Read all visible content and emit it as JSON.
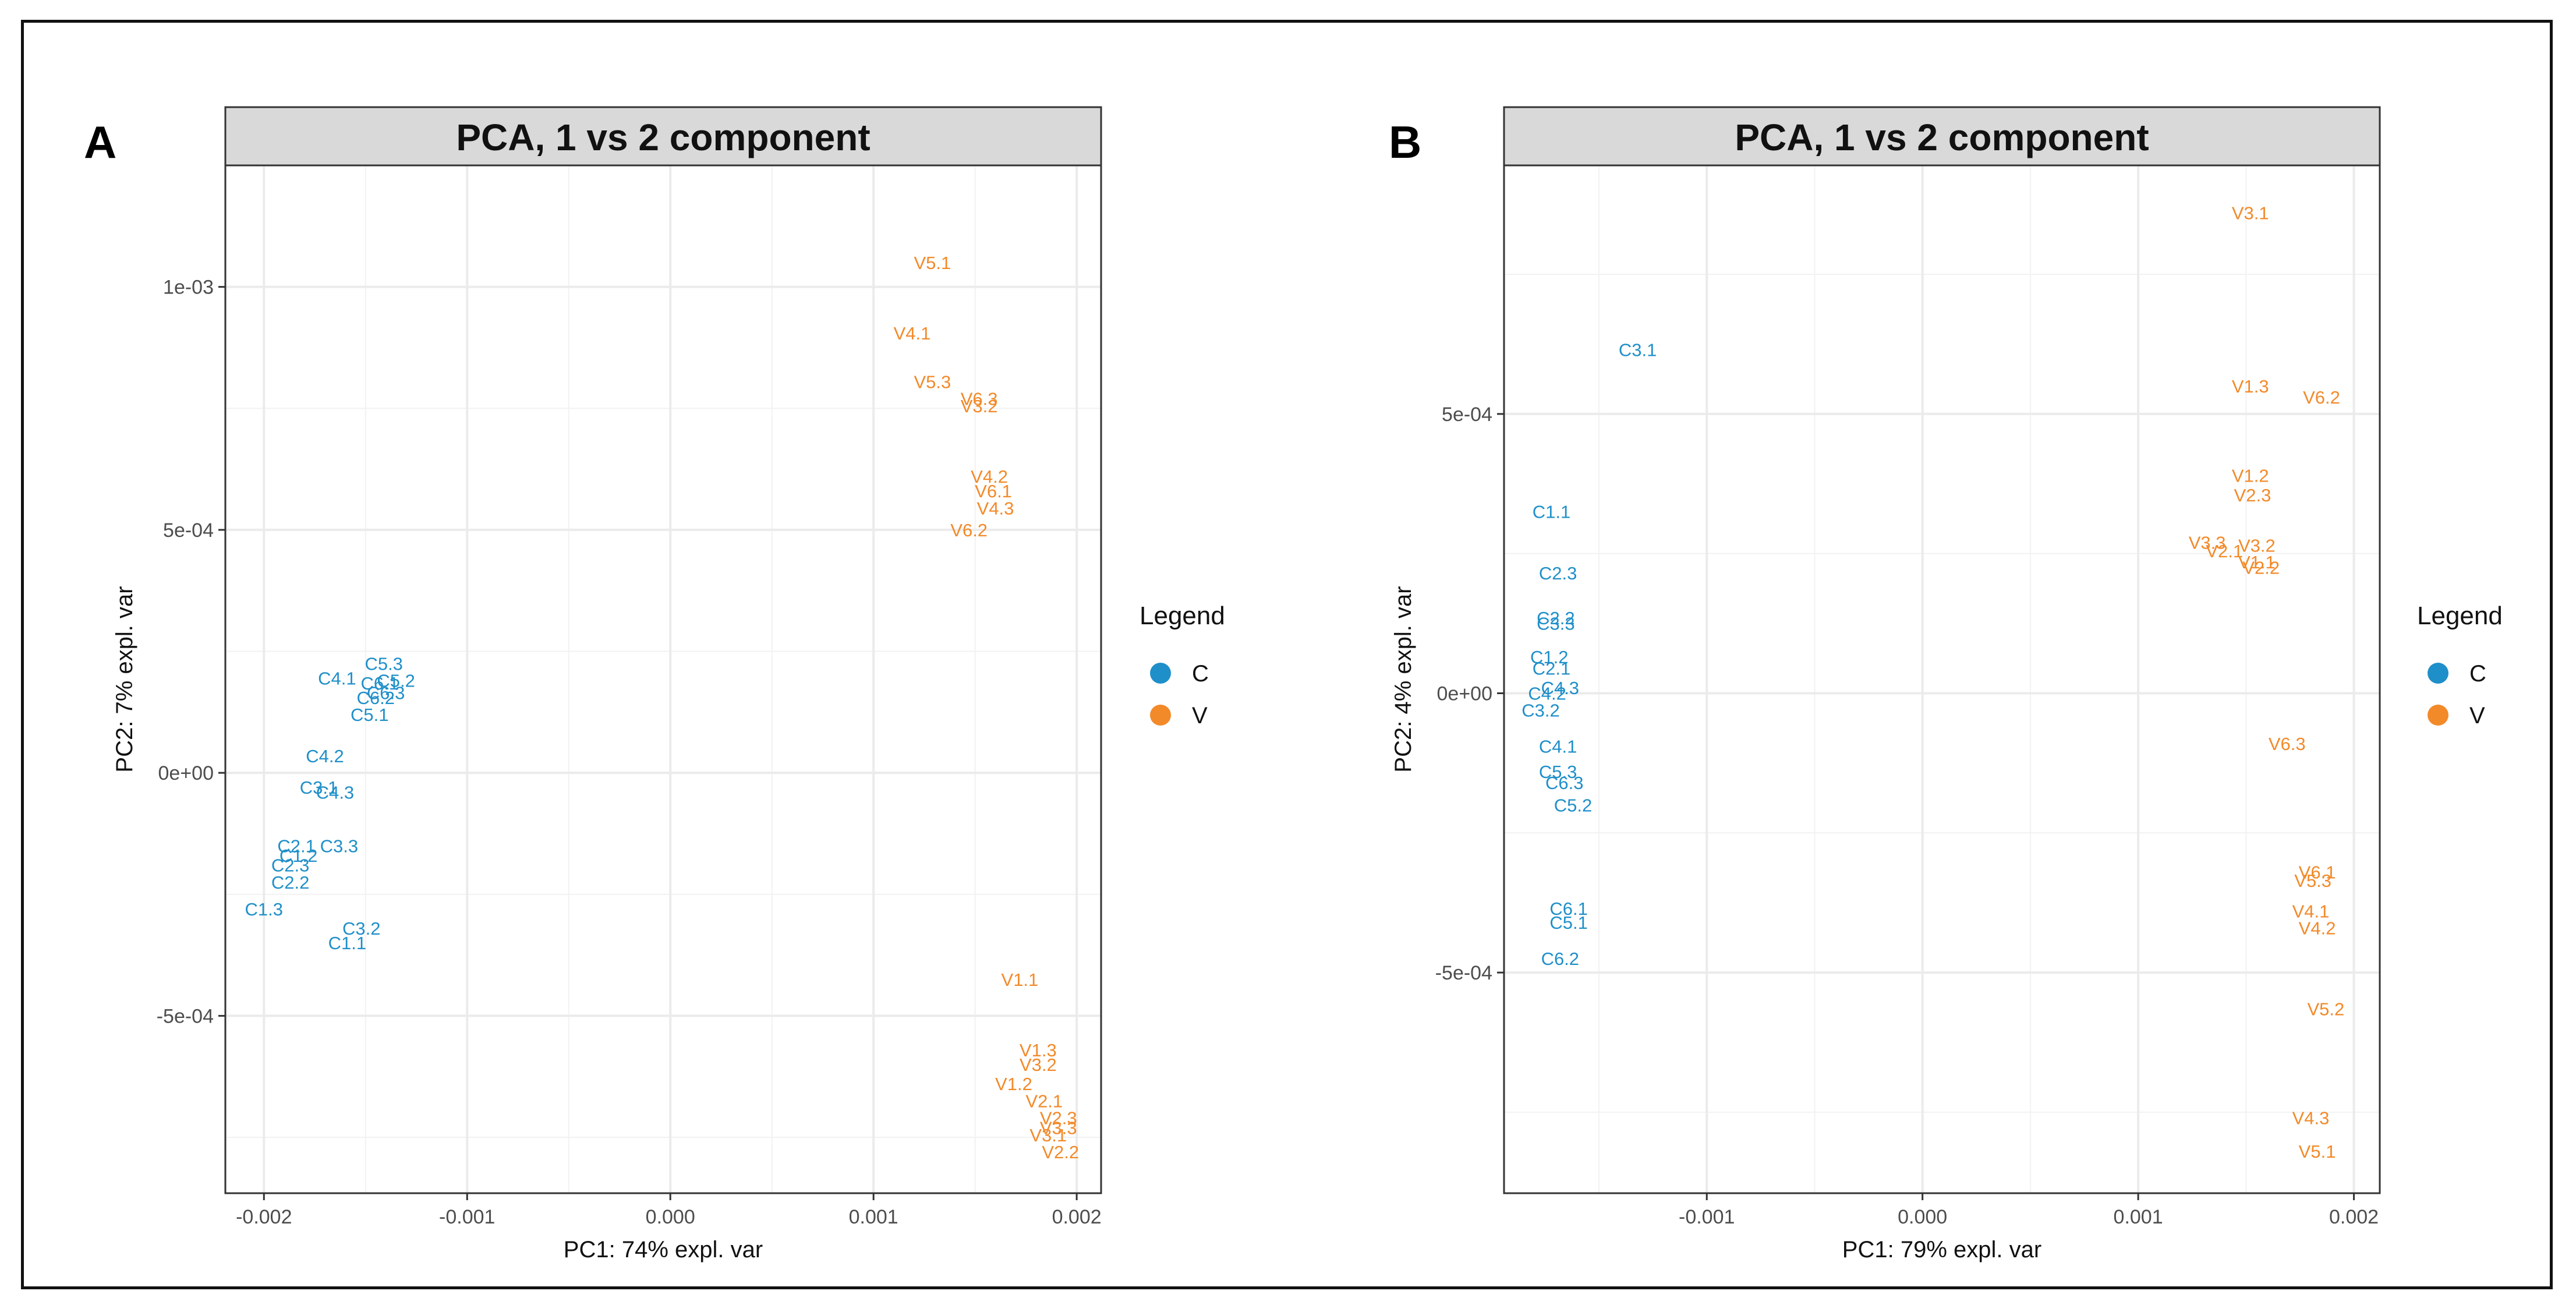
{
  "colors": {
    "C": "#1f8fc9",
    "V": "#f28a2a",
    "strip": "#d9d9d9",
    "grid": "#ebebeb",
    "panel_border": "#333333"
  },
  "legend_title": "Legend",
  "chart_data": [
    {
      "panel_label": "A",
      "type": "scatter",
      "title": "PCA, 1 vs 2 component",
      "xlabel": "PC1: 74% expl. var",
      "ylabel": "PC2: 7% expl. var",
      "xlim": [
        -0.00219,
        0.00212
      ],
      "ylim": [
        -0.000865,
        0.00125
      ],
      "x_ticks": [
        -0.002,
        -0.001,
        0.0,
        0.001,
        0.002
      ],
      "x_tick_labels": [
        "-0.002",
        "-0.001",
        "0.000",
        "0.001",
        "0.002"
      ],
      "y_ticks": [
        -0.0005,
        0.0,
        0.0005,
        0.001
      ],
      "y_tick_labels": [
        "-5e-04",
        "0e+00",
        "5e-04",
        "1e-03"
      ],
      "legend": {
        "title": "Legend",
        "entries": [
          "C",
          "V"
        ],
        "position": "right"
      },
      "series": [
        {
          "name": "C",
          "points": [
            {
              "label": "C5.3",
              "x": -0.00141,
              "y": 0.000225
            },
            {
              "label": "C4.1",
              "x": -0.00164,
              "y": 0.000195
            },
            {
              "label": "C6.1",
              "x": -0.00143,
              "y": 0.000185
            },
            {
              "label": "C5.2",
              "x": -0.00135,
              "y": 0.00019
            },
            {
              "label": "C6.3",
              "x": -0.0014,
              "y": 0.000165
            },
            {
              "label": "C6.2",
              "x": -0.00145,
              "y": 0.000155
            },
            {
              "label": "C5.1",
              "x": -0.00148,
              "y": 0.00012
            },
            {
              "label": "C4.2",
              "x": -0.0017,
              "y": 3.5e-05
            },
            {
              "label": "C3.1",
              "x": -0.00173,
              "y": -3e-05
            },
            {
              "label": "C4.3",
              "x": -0.00165,
              "y": -4e-05
            },
            {
              "label": "C2.1",
              "x": -0.00184,
              "y": -0.00015
            },
            {
              "label": "C3.3",
              "x": -0.00163,
              "y": -0.00015
            },
            {
              "label": "C1.2",
              "x": -0.00183,
              "y": -0.00017
            },
            {
              "label": "C2.3",
              "x": -0.00187,
              "y": -0.00019
            },
            {
              "label": "C2.2",
              "x": -0.00187,
              "y": -0.000225
            },
            {
              "label": "C1.3",
              "x": -0.002,
              "y": -0.00028
            },
            {
              "label": "C3.2",
              "x": -0.00152,
              "y": -0.00032
            },
            {
              "label": "C1.1",
              "x": -0.00159,
              "y": -0.00035
            }
          ]
        },
        {
          "name": "V",
          "points": [
            {
              "label": "V5.1",
              "x": 0.00129,
              "y": 0.00105
            },
            {
              "label": "V4.1",
              "x": 0.00119,
              "y": 0.000905
            },
            {
              "label": "V5.3",
              "x": 0.00129,
              "y": 0.000805
            },
            {
              "label": "V6.3",
              "x": 0.00152,
              "y": 0.00077
            },
            {
              "label": "V3.2",
              "x": 0.00152,
              "y": 0.000755
            },
            {
              "label": "V4.2",
              "x": 0.00157,
              "y": 0.00061
            },
            {
              "label": "V6.1",
              "x": 0.00159,
              "y": 0.00058
            },
            {
              "label": "V4.3",
              "x": 0.0016,
              "y": 0.000545
            },
            {
              "label": "V6.2",
              "x": 0.00147,
              "y": 0.0005
            },
            {
              "label": "V1.1",
              "x": 0.00172,
              "y": -0.000425
            },
            {
              "label": "V1.3",
              "x": 0.00181,
              "y": -0.00057
            },
            {
              "label": "V3.2",
              "x": 0.00181,
              "y": -0.0006
            },
            {
              "label": "V1.2",
              "x": 0.00169,
              "y": -0.00064
            },
            {
              "label": "V2.1",
              "x": 0.00184,
              "y": -0.000675
            },
            {
              "label": "V2.3",
              "x": 0.00191,
              "y": -0.00071
            },
            {
              "label": "V3.3",
              "x": 0.00191,
              "y": -0.00073
            },
            {
              "label": "V3.1",
              "x": 0.00186,
              "y": -0.000745
            },
            {
              "label": "V2.2",
              "x": 0.00192,
              "y": -0.00078
            }
          ]
        }
      ]
    },
    {
      "panel_label": "B",
      "type": "scatter",
      "title": "PCA, 1 vs 2 component",
      "xlabel": "PC1: 79% expl. var",
      "ylabel": "PC2: 4% expl. var",
      "xlim": [
        -0.00194,
        0.00212
      ],
      "ylim": [
        -0.000895,
        0.000945
      ],
      "x_ticks": [
        -0.001,
        0.0,
        0.001,
        0.002
      ],
      "x_tick_labels": [
        "-0.001",
        "0.000",
        "0.001",
        "0.002"
      ],
      "y_ticks": [
        -0.0005,
        0.0,
        0.0005
      ],
      "y_tick_labels": [
        "-5e-04",
        "0e+00",
        "5e-04"
      ],
      "legend": {
        "title": "Legend",
        "entries": [
          "C",
          "V"
        ],
        "position": "right"
      },
      "series": [
        {
          "name": "C",
          "points": [
            {
              "label": "C3.1",
              "x": -0.00132,
              "y": 0.000615
            },
            {
              "label": "C1.1",
              "x": -0.00172,
              "y": 0.000325
            },
            {
              "label": "C2.3",
              "x": -0.00169,
              "y": 0.000215
            },
            {
              "label": "C2.2",
              "x": -0.0017,
              "y": 0.000135
            },
            {
              "label": "C3.3",
              "x": -0.0017,
              "y": 0.000125
            },
            {
              "label": "C1.2",
              "x": -0.00173,
              "y": 6.5e-05
            },
            {
              "label": "C2.1",
              "x": -0.00172,
              "y": 4.5e-05
            },
            {
              "label": "C4.3",
              "x": -0.00168,
              "y": 1e-05
            },
            {
              "label": "C4.2",
              "x": -0.00174,
              "y": 0.0
            },
            {
              "label": "C3.2",
              "x": -0.00177,
              "y": -3e-05
            },
            {
              "label": "C4.1",
              "x": -0.00169,
              "y": -9.5e-05
            },
            {
              "label": "C5.3",
              "x": -0.00169,
              "y": -0.00014
            },
            {
              "label": "C6.3",
              "x": -0.00166,
              "y": -0.00016
            },
            {
              "label": "C5.2",
              "x": -0.00162,
              "y": -0.0002
            },
            {
              "label": "C6.1",
              "x": -0.00164,
              "y": -0.000385
            },
            {
              "label": "C5.1",
              "x": -0.00164,
              "y": -0.00041
            },
            {
              "label": "C6.2",
              "x": -0.00168,
              "y": -0.000475
            }
          ]
        },
        {
          "name": "V",
          "points": [
            {
              "label": "V3.1",
              "x": 0.00152,
              "y": 0.00086
            },
            {
              "label": "V1.3",
              "x": 0.00152,
              "y": 0.00055
            },
            {
              "label": "V6.2",
              "x": 0.00185,
              "y": 0.00053
            },
            {
              "label": "V1.2",
              "x": 0.00152,
              "y": 0.00039
            },
            {
              "label": "V2.3",
              "x": 0.00153,
              "y": 0.000355
            },
            {
              "label": "V3.3",
              "x": 0.00132,
              "y": 0.00027
            },
            {
              "label": "V3.2",
              "x": 0.00155,
              "y": 0.000265
            },
            {
              "label": "V2.1",
              "x": 0.0014,
              "y": 0.000255
            },
            {
              "label": "V1.1",
              "x": 0.00155,
              "y": 0.000235
            },
            {
              "label": "V2.2",
              "x": 0.00157,
              "y": 0.000225
            },
            {
              "label": "V6.3",
              "x": 0.00169,
              "y": -9e-05
            },
            {
              "label": "V6.1",
              "x": 0.00183,
              "y": -0.00032
            },
            {
              "label": "V5.3",
              "x": 0.00181,
              "y": -0.000335
            },
            {
              "label": "V4.1",
              "x": 0.0018,
              "y": -0.00039
            },
            {
              "label": "V4.2",
              "x": 0.00183,
              "y": -0.00042
            },
            {
              "label": "V5.2",
              "x": 0.00187,
              "y": -0.000565
            },
            {
              "label": "V4.3",
              "x": 0.0018,
              "y": -0.00076
            },
            {
              "label": "V5.1",
              "x": 0.00183,
              "y": -0.00082
            }
          ]
        }
      ]
    }
  ]
}
